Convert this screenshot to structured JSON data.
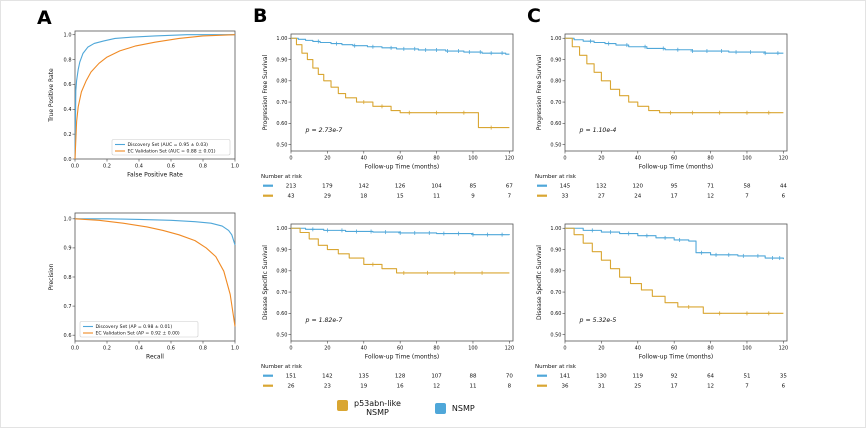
{
  "figure": {
    "background": "#ffffff",
    "panel_labels": {
      "a": "A",
      "b": "B",
      "c": "C"
    }
  },
  "colors": {
    "blue": "#4FA7D9",
    "orange": "#F08A24",
    "gold": "#D9A632",
    "axis": "#444444"
  },
  "legend": {
    "items": [
      {
        "label_line1": "p53abn-like",
        "label_line2": "NSMP",
        "color": "#D9A632"
      },
      {
        "label_line1": "NSMP",
        "label_line2": "",
        "color": "#4FA7D9"
      }
    ]
  },
  "chart_data": [
    {
      "id": "roc",
      "type": "line",
      "step": false,
      "title": "",
      "xlabel": "False Positive Rate",
      "ylabel": "True Positive Rate",
      "xlim": [
        0,
        1.0
      ],
      "ylim": [
        0,
        1.03
      ],
      "xticks": [
        0,
        0.2,
        0.4,
        0.6,
        0.8,
        1.0
      ],
      "yticks": [
        0,
        0.2,
        0.4,
        0.6,
        0.8,
        1.0
      ],
      "x_decimals": 1,
      "y_decimals": 1,
      "legend": {
        "position": "bottom-right"
      },
      "series": [
        {
          "name": "Discovery Set (AUC = 0.95 ± 0.03)",
          "color": "#4FA7D9",
          "x": [
            0,
            0.005,
            0.01,
            0.02,
            0.03,
            0.05,
            0.08,
            0.12,
            0.18,
            0.25,
            0.35,
            0.5,
            0.7,
            1.0
          ],
          "y": [
            0,
            0.55,
            0.63,
            0.72,
            0.78,
            0.85,
            0.9,
            0.93,
            0.95,
            0.97,
            0.98,
            0.99,
            1.0,
            1.0
          ]
        },
        {
          "name": "EC Validation Set (AUC = 0.88 ± 0.01)",
          "color": "#F08A24",
          "x": [
            0,
            0.01,
            0.02,
            0.04,
            0.07,
            0.1,
            0.15,
            0.2,
            0.28,
            0.38,
            0.5,
            0.65,
            0.8,
            1.0
          ],
          "y": [
            0,
            0.3,
            0.42,
            0.54,
            0.63,
            0.7,
            0.77,
            0.82,
            0.87,
            0.91,
            0.94,
            0.97,
            0.99,
            1.0
          ]
        }
      ]
    },
    {
      "id": "pr",
      "type": "line",
      "step": false,
      "title": "",
      "xlabel": "Recall",
      "ylabel": "Precision",
      "xlim": [
        0,
        1.0
      ],
      "ylim": [
        0.58,
        1.02
      ],
      "xticks": [
        0,
        0.2,
        0.4,
        0.6,
        0.8,
        1.0
      ],
      "yticks": [
        0.6,
        0.7,
        0.8,
        0.9,
        1.0
      ],
      "x_decimals": 1,
      "y_decimals": 1,
      "legend": {
        "position": "bottom-left"
      },
      "series": [
        {
          "name": "Discovery Set (AP = 0.98 ± 0.01)",
          "color": "#4FA7D9",
          "x": [
            0,
            0.2,
            0.4,
            0.6,
            0.75,
            0.85,
            0.92,
            0.96,
            0.98,
            1.0
          ],
          "y": [
            1.0,
            1.0,
            0.998,
            0.995,
            0.99,
            0.985,
            0.975,
            0.96,
            0.945,
            0.91
          ]
        },
        {
          "name": "EC Validation Set (AP = 0.92 ± 0.00)",
          "color": "#F08A24",
          "x": [
            0,
            0.15,
            0.3,
            0.45,
            0.55,
            0.65,
            0.75,
            0.82,
            0.88,
            0.93,
            0.97,
            1.0
          ],
          "y": [
            1.0,
            0.995,
            0.985,
            0.972,
            0.96,
            0.945,
            0.925,
            0.9,
            0.87,
            0.82,
            0.74,
            0.63
          ]
        }
      ]
    },
    {
      "id": "km_b_pfs",
      "type": "line",
      "step": true,
      "title": "",
      "xlabel": "Follow-up Time (months)",
      "ylabel": "Progression Free Survival",
      "xlim": [
        0,
        122
      ],
      "ylim": [
        0.47,
        1.02
      ],
      "xticks": [
        0,
        20,
        40,
        60,
        80,
        100,
        120
      ],
      "yticks": [
        0.5,
        0.6,
        0.7,
        0.8,
        0.9,
        1.0
      ],
      "x_decimals": 0,
      "y_decimals": 2,
      "annotation": {
        "text": "p = 2.73e-7",
        "x": 8,
        "y": 0.56
      },
      "series": [
        {
          "name": "NSMP",
          "color": "#4FA7D9",
          "x": [
            0,
            4,
            8,
            12,
            16,
            22,
            28,
            34,
            42,
            50,
            58,
            70,
            85,
            95,
            105,
            118,
            120
          ],
          "y": [
            1.0,
            0.995,
            0.99,
            0.985,
            0.98,
            0.975,
            0.97,
            0.965,
            0.96,
            0.955,
            0.95,
            0.945,
            0.94,
            0.935,
            0.93,
            0.925,
            0.925
          ],
          "censor_x": [
            15,
            25,
            35,
            45,
            55,
            62,
            68,
            74,
            80,
            86,
            92,
            98,
            104,
            110,
            116
          ]
        },
        {
          "name": "p53abn-like NSMP",
          "color": "#D9A632",
          "x": [
            0,
            3,
            6,
            9,
            12,
            15,
            18,
            22,
            26,
            30,
            36,
            45,
            55,
            60,
            103,
            120
          ],
          "y": [
            1.0,
            0.97,
            0.93,
            0.9,
            0.86,
            0.83,
            0.8,
            0.77,
            0.74,
            0.72,
            0.7,
            0.68,
            0.66,
            0.65,
            0.58,
            0.58
          ],
          "censor_x": [
            40,
            50,
            65,
            80,
            95,
            110
          ]
        }
      ],
      "number_at_risk": {
        "label": "Number at risk",
        "rows": [
          {
            "color": "#4FA7D9",
            "values": [
              213,
              179,
              142,
              126,
              104,
              85,
              67
            ]
          },
          {
            "color": "#D9A632",
            "values": [
              43,
              29,
              18,
              15,
              11,
              9,
              7
            ]
          }
        ]
      }
    },
    {
      "id": "km_b_dss",
      "type": "line",
      "step": true,
      "title": "",
      "xlabel": "Follow-up Time (months)",
      "ylabel": "Disease Specific Survival",
      "xlim": [
        0,
        122
      ],
      "ylim": [
        0.47,
        1.02
      ],
      "xticks": [
        0,
        20,
        40,
        60,
        80,
        100,
        120
      ],
      "yticks": [
        0.5,
        0.6,
        0.7,
        0.8,
        0.9,
        1.0
      ],
      "x_decimals": 0,
      "y_decimals": 2,
      "annotation": {
        "text": "p = 1.82e-7",
        "x": 8,
        "y": 0.56
      },
      "series": [
        {
          "name": "NSMP",
          "color": "#4FA7D9",
          "x": [
            0,
            8,
            18,
            30,
            45,
            60,
            80,
            100,
            120
          ],
          "y": [
            1.0,
            0.995,
            0.99,
            0.985,
            0.982,
            0.978,
            0.975,
            0.97,
            0.968
          ],
          "censor_x": [
            12,
            20,
            28,
            36,
            44,
            52,
            60,
            68,
            76,
            84,
            92,
            100,
            108,
            116
          ]
        },
        {
          "name": "p53abn-like NSMP",
          "color": "#D9A632",
          "x": [
            0,
            5,
            10,
            15,
            20,
            26,
            32,
            40,
            50,
            58,
            120
          ],
          "y": [
            1.0,
            0.98,
            0.95,
            0.92,
            0.9,
            0.88,
            0.86,
            0.83,
            0.81,
            0.79,
            0.79
          ],
          "censor_x": [
            45,
            62,
            75,
            90,
            105
          ]
        }
      ],
      "number_at_risk": {
        "label": "Number at risk",
        "rows": [
          {
            "color": "#4FA7D9",
            "values": [
              151,
              142,
              135,
              128,
              107,
              88,
              70
            ]
          },
          {
            "color": "#D9A632",
            "values": [
              26,
              23,
              19,
              16,
              12,
              11,
              8
            ]
          }
        ]
      }
    },
    {
      "id": "km_c_pfs",
      "type": "line",
      "step": true,
      "title": "",
      "xlabel": "Follow-up Time (months)",
      "ylabel": "Progression Free Survival",
      "xlim": [
        0,
        122
      ],
      "ylim": [
        0.47,
        1.02
      ],
      "xticks": [
        0,
        20,
        40,
        60,
        80,
        100,
        120
      ],
      "yticks": [
        0.5,
        0.6,
        0.7,
        0.8,
        0.9,
        1.0
      ],
      "x_decimals": 0,
      "y_decimals": 2,
      "annotation": {
        "text": "p = 1.10e-4",
        "x": 8,
        "y": 0.56
      },
      "series": [
        {
          "name": "NSMP",
          "color": "#4FA7D9",
          "x": [
            0,
            5,
            10,
            16,
            22,
            28,
            35,
            45,
            55,
            70,
            90,
            110,
            120
          ],
          "y": [
            1.0,
            0.993,
            0.986,
            0.98,
            0.975,
            0.968,
            0.96,
            0.952,
            0.946,
            0.94,
            0.935,
            0.93,
            0.93
          ],
          "censor_x": [
            14,
            24,
            34,
            44,
            54,
            62,
            70,
            78,
            86,
            94,
            102,
            110,
            117
          ]
        },
        {
          "name": "p53abn-like NSMP",
          "color": "#D9A632",
          "x": [
            0,
            4,
            8,
            12,
            16,
            20,
            25,
            30,
            35,
            40,
            46,
            52,
            120
          ],
          "y": [
            1.0,
            0.96,
            0.92,
            0.88,
            0.84,
            0.8,
            0.76,
            0.73,
            0.7,
            0.68,
            0.66,
            0.65,
            0.65
          ],
          "censor_x": [
            58,
            70,
            85,
            100,
            112
          ]
        }
      ],
      "number_at_risk": {
        "label": "Number at risk",
        "rows": [
          {
            "color": "#4FA7D9",
            "values": [
              145,
              132,
              120,
              95,
              71,
              58,
              44
            ]
          },
          {
            "color": "#D9A632",
            "values": [
              33,
              27,
              24,
              17,
              12,
              7,
              6
            ]
          }
        ]
      }
    },
    {
      "id": "km_c_dss",
      "type": "line",
      "step": true,
      "title": "",
      "xlabel": "Follow-up Time (months)",
      "ylabel": "Disease Specific Survival",
      "xlim": [
        0,
        122
      ],
      "ylim": [
        0.47,
        1.02
      ],
      "xticks": [
        0,
        20,
        40,
        60,
        80,
        100,
        120
      ],
      "yticks": [
        0.5,
        0.6,
        0.7,
        0.8,
        0.9,
        1.0
      ],
      "x_decimals": 0,
      "y_decimals": 2,
      "annotation": {
        "text": "p = 5.32e-5",
        "x": 8,
        "y": 0.56
      },
      "series": [
        {
          "name": "NSMP",
          "color": "#4FA7D9",
          "x": [
            0,
            10,
            20,
            30,
            40,
            50,
            60,
            68,
            72,
            80,
            95,
            110,
            120
          ],
          "y": [
            1.0,
            0.99,
            0.982,
            0.975,
            0.965,
            0.955,
            0.945,
            0.94,
            0.885,
            0.875,
            0.87,
            0.86,
            0.855
          ],
          "censor_x": [
            15,
            25,
            35,
            45,
            55,
            63,
            75,
            83,
            90,
            98,
            106,
            114,
            118
          ]
        },
        {
          "name": "p53abn-like NSMP",
          "color": "#D9A632",
          "x": [
            0,
            5,
            10,
            15,
            20,
            25,
            30,
            36,
            42,
            48,
            55,
            62,
            76,
            120
          ],
          "y": [
            1.0,
            0.97,
            0.93,
            0.89,
            0.85,
            0.81,
            0.77,
            0.74,
            0.71,
            0.68,
            0.65,
            0.63,
            0.6,
            0.6
          ],
          "censor_x": [
            68,
            85,
            100,
            112
          ]
        }
      ],
      "number_at_risk": {
        "label": "Number at risk",
        "rows": [
          {
            "color": "#4FA7D9",
            "values": [
              141,
              130,
              119,
              92,
              64,
              51,
              35
            ]
          },
          {
            "color": "#D9A632",
            "values": [
              36,
              31,
              25,
              17,
              12,
              7,
              6
            ]
          }
        ]
      }
    }
  ]
}
